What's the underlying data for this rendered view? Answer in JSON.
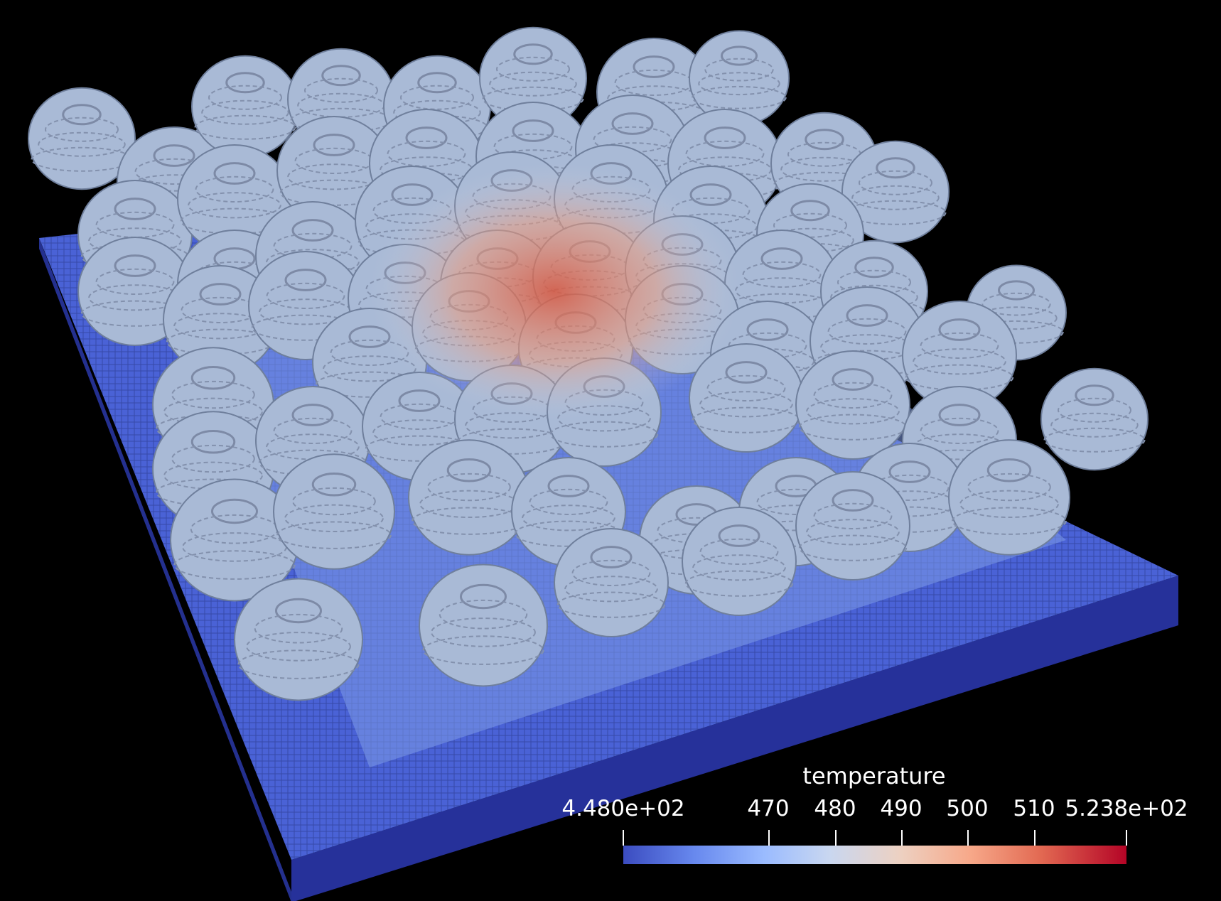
{
  "scene": {
    "description_icon": "voxel-particle-packing-render",
    "background_color": "#000000",
    "substrate_color": "#3b4cc0",
    "particle_cold_color": "#a9bad6",
    "particle_hot_color": "#d9573e"
  },
  "legend": {
    "title": "temperature",
    "min_label": "4.480e+02",
    "max_label": "5.238e+02",
    "ticks": [
      {
        "label": "470",
        "value": 470
      },
      {
        "label": "480",
        "value": 480
      },
      {
        "label": "490",
        "value": 490
      },
      {
        "label": "500",
        "value": 500
      },
      {
        "label": "510",
        "value": 510
      }
    ],
    "range": [
      448.0,
      523.8
    ],
    "colormap": [
      "#3b4cc0",
      "#6788ee",
      "#9abbff",
      "#c9d7f0",
      "#edd1c2",
      "#f7a889",
      "#e26952",
      "#b40426"
    ]
  }
}
